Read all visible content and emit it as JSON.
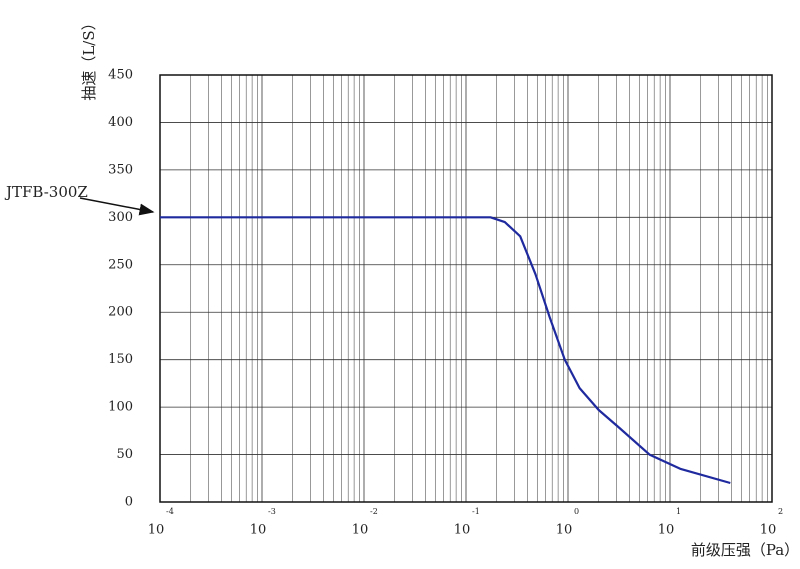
{
  "chart_data": {
    "type": "line",
    "y_label": "抽速（L/S）",
    "x_label": "前级压强（Pa）",
    "annotation": "JTFB-300Z",
    "x": [
      0.0001,
      0.174,
      0.24,
      0.34,
      0.48,
      0.66,
      0.93,
      1.3,
      2.0,
      3.2,
      6.3,
      12.6,
      39
    ],
    "series": [
      {
        "color": "#1f2a9e",
        "values": [
          300,
          300,
          295,
          280,
          240,
          195,
          150,
          120,
          97,
          78,
          50,
          35,
          20
        ]
      }
    ],
    "xlim": [
      0.0001,
      100
    ],
    "ylim": [
      0,
      450
    ],
    "x_log": true,
    "xticks": [
      {
        "value": 0.0001,
        "label": "10",
        "exponent": "-4"
      },
      {
        "value": 0.001,
        "label": "10",
        "exponent": "-3"
      },
      {
        "value": 0.01,
        "label": "10",
        "exponent": "-2"
      },
      {
        "value": 0.1,
        "label": "10",
        "exponent": "-1"
      },
      {
        "value": 1,
        "label": "10",
        "exponent": "0"
      },
      {
        "value": 10,
        "label": "10",
        "exponent": "1"
      },
      {
        "value": 100,
        "label": "10",
        "exponent": "2"
      }
    ],
    "yticks": [
      0,
      50,
      100,
      150,
      200,
      250,
      300,
      350,
      400,
      450
    ],
    "grid": true,
    "minor_grid": true
  }
}
